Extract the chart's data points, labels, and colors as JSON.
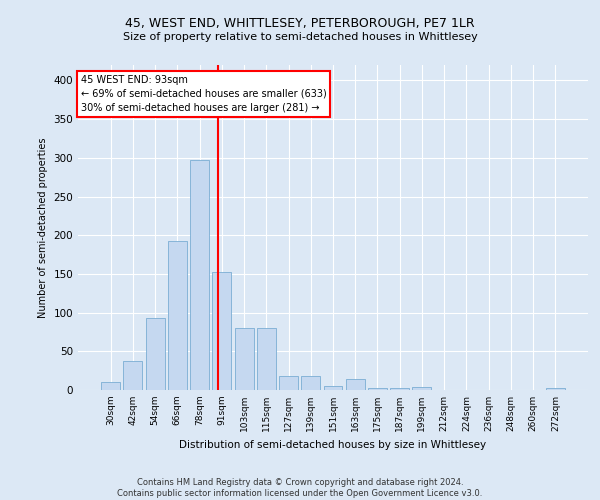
{
  "title": "45, WEST END, WHITTLESEY, PETERBOROUGH, PE7 1LR",
  "subtitle": "Size of property relative to semi-detached houses in Whittlesey",
  "xlabel": "Distribution of semi-detached houses by size in Whittlesey",
  "ylabel": "Number of semi-detached properties",
  "categories": [
    "30sqm",
    "42sqm",
    "54sqm",
    "66sqm",
    "78sqm",
    "91sqm",
    "103sqm",
    "115sqm",
    "127sqm",
    "139sqm",
    "151sqm",
    "163sqm",
    "175sqm",
    "187sqm",
    "199sqm",
    "212sqm",
    "224sqm",
    "236sqm",
    "248sqm",
    "260sqm",
    "272sqm"
  ],
  "values": [
    10,
    38,
    93,
    192,
    297,
    152,
    80,
    80,
    18,
    18,
    5,
    14,
    3,
    3,
    4,
    0,
    0,
    0,
    0,
    0,
    3
  ],
  "bar_color": "#c5d8f0",
  "bar_edge_color": "#7aadd4",
  "vline_color": "red",
  "annotation_text": "45 WEST END: 93sqm\n← 69% of semi-detached houses are smaller (633)\n30% of semi-detached houses are larger (281) →",
  "annotation_box_color": "white",
  "annotation_box_edge": "red",
  "ylim": [
    0,
    420
  ],
  "yticks": [
    0,
    50,
    100,
    150,
    200,
    250,
    300,
    350,
    400
  ],
  "footer": "Contains HM Land Registry data © Crown copyright and database right 2024.\nContains public sector information licensed under the Open Government Licence v3.0.",
  "bg_color": "#dce8f5",
  "plot_bg_color": "#dce8f5",
  "title_fontsize": 9,
  "subtitle_fontsize": 8
}
